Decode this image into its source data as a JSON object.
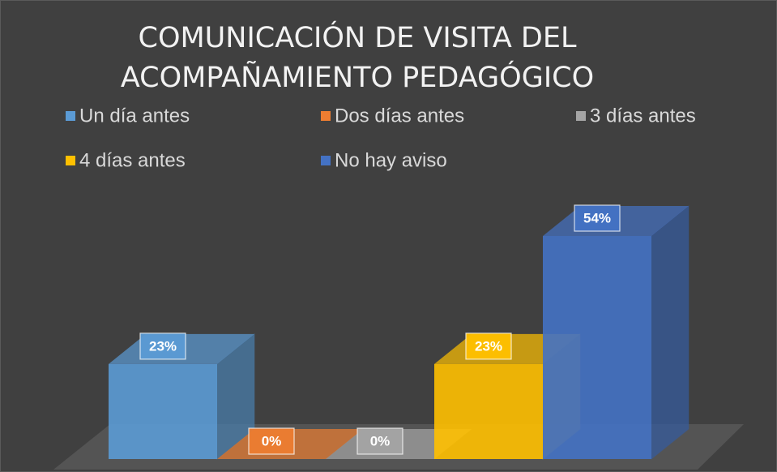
{
  "chart_data": {
    "type": "bar3d",
    "title": "COMUNICACIÓN DE VISITA DEL ACOMPAÑAMIENTO PEDAGÓGICO",
    "series": [
      {
        "name": "Un día antes",
        "color": "#5b9bd5",
        "values": [
          23
        ],
        "value_labels": [
          "23%"
        ]
      },
      {
        "name": "Dos días antes",
        "color": "#ed7d31",
        "values": [
          0
        ],
        "value_labels": [
          "0%"
        ]
      },
      {
        "name": "3 días antes",
        "color": "#a5a5a5",
        "values": [
          0
        ],
        "value_labels": [
          "0%"
        ]
      },
      {
        "name": "4 días antes",
        "color": "#ffc000",
        "values": [
          23
        ],
        "value_labels": [
          "23%"
        ]
      },
      {
        "name": "No hay aviso",
        "color": "#4472c4",
        "values": [
          54
        ],
        "value_labels": [
          "54%"
        ]
      }
    ],
    "legend": "top"
  }
}
